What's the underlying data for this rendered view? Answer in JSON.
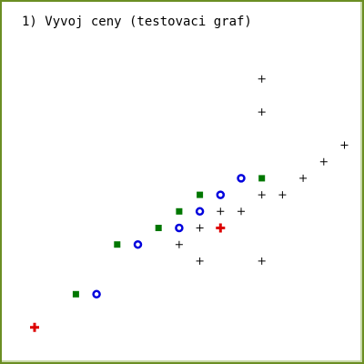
{
  "chart_data": {
    "type": "scatter",
    "title": "1) Vyvoj ceny (testovaci graf)",
    "xlabel": "",
    "ylabel": "",
    "grid": false,
    "legend": "none",
    "series": [
      {
        "marker": "plus-small",
        "color": "#000000",
        "points": [
          [
            11,
            14
          ],
          [
            11,
            12
          ],
          [
            15,
            10
          ],
          [
            14,
            9
          ],
          [
            13,
            8
          ],
          [
            12,
            7
          ],
          [
            11,
            7
          ],
          [
            10,
            6
          ],
          [
            9,
            6
          ],
          [
            8,
            5
          ],
          [
            7,
            4
          ],
          [
            8,
            3
          ],
          [
            11,
            3
          ]
        ]
      },
      {
        "marker": "plus-bold",
        "color": "#dd0000",
        "points": [
          [
            9,
            5
          ],
          [
            0,
            -1
          ]
        ]
      },
      {
        "marker": "square",
        "color": "#007700",
        "points": [
          [
            11,
            8
          ],
          [
            8,
            7
          ],
          [
            7,
            6
          ],
          [
            6,
            5
          ],
          [
            4,
            4
          ],
          [
            2,
            1
          ]
        ]
      },
      {
        "marker": "circle",
        "color": "#0000dd",
        "points": [
          [
            10,
            8
          ],
          [
            9,
            7
          ],
          [
            8,
            6
          ],
          [
            7,
            5
          ],
          [
            5,
            4
          ],
          [
            3,
            1
          ]
        ]
      }
    ]
  }
}
